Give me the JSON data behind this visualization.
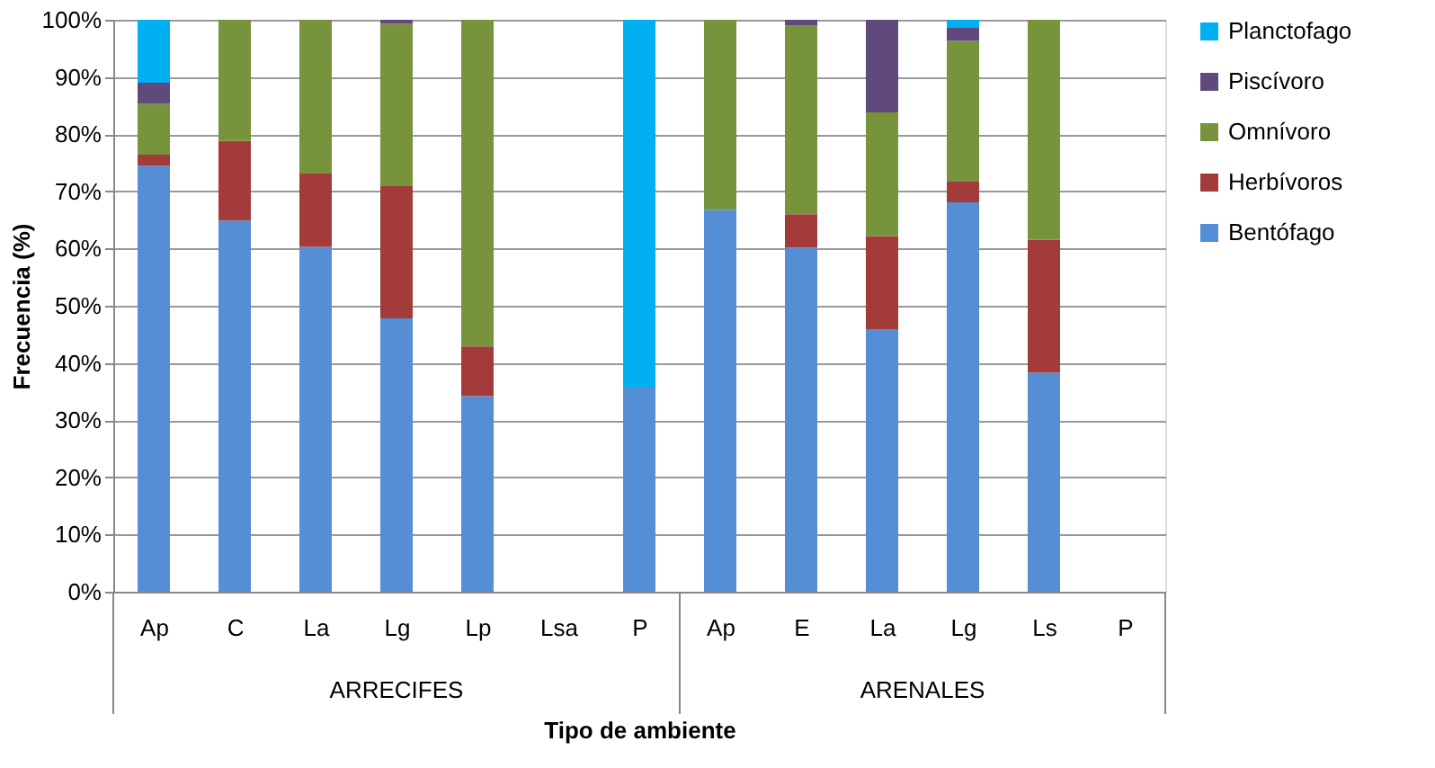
{
  "chart_data": {
    "type": "bar",
    "stacked": true,
    "xlabel": "Tipo de ambiente",
    "ylabel": "Frecuencia (%)",
    "categories": [
      "Ap",
      "C",
      "La",
      "Lg",
      "Lp",
      "Lsa",
      "P",
      "Ap",
      "E",
      "La",
      "Lg",
      "Ls",
      "P"
    ],
    "annotations": [
      "ARRECIFES",
      "ARENALES"
    ],
    "series": [
      {
        "name": "Bentófago",
        "color": "#558ed5",
        "values": [
          74.5,
          64.9,
          60.3,
          47.8,
          34.2,
          null,
          35.7,
          66.8,
          60.2,
          45.9,
          68.1,
          38.3,
          null
        ]
      },
      {
        "name": "Herbívoros",
        "color": "#a33b3a",
        "values": [
          1.9,
          13.9,
          12.8,
          23.1,
          8.7,
          null,
          null,
          null,
          5.8,
          16.3,
          3.6,
          23.2,
          null
        ]
      },
      {
        "name": "Omnívoro",
        "color": "#77933c",
        "values": [
          8.9,
          21.2,
          26.9,
          28.4,
          57.1,
          null,
          null,
          33.2,
          33.0,
          21.6,
          24.6,
          38.5,
          null
        ]
      },
      {
        "name": "Piscívoro",
        "color": "#604a7b",
        "values": [
          3.7,
          null,
          null,
          0.7,
          null,
          null,
          null,
          null,
          1.0,
          16.2,
          2.4,
          null,
          null
        ]
      },
      {
        "name": "Planctofago",
        "color": "#00b0f0",
        "values": [
          11.0,
          null,
          null,
          null,
          null,
          null,
          64.3,
          null,
          null,
          null,
          1.3,
          null,
          null
        ]
      }
    ],
    "ylim": [
      0,
      100
    ],
    "yticks": [
      {
        "value": 0,
        "label": "0%"
      },
      {
        "value": 10,
        "label": "10%"
      },
      {
        "value": 20,
        "label": "20%"
      },
      {
        "value": 30,
        "label": "30%"
      },
      {
        "value": 40,
        "label": "40%"
      },
      {
        "value": 50,
        "label": "50%"
      },
      {
        "value": 60,
        "label": "60%"
      },
      {
        "value": 70,
        "label": "70%"
      },
      {
        "value": 80,
        "label": "80%"
      },
      {
        "value": 90,
        "label": "90%"
      },
      {
        "value": 100,
        "label": "100%"
      }
    ],
    "grid": "y",
    "legend": "right"
  }
}
